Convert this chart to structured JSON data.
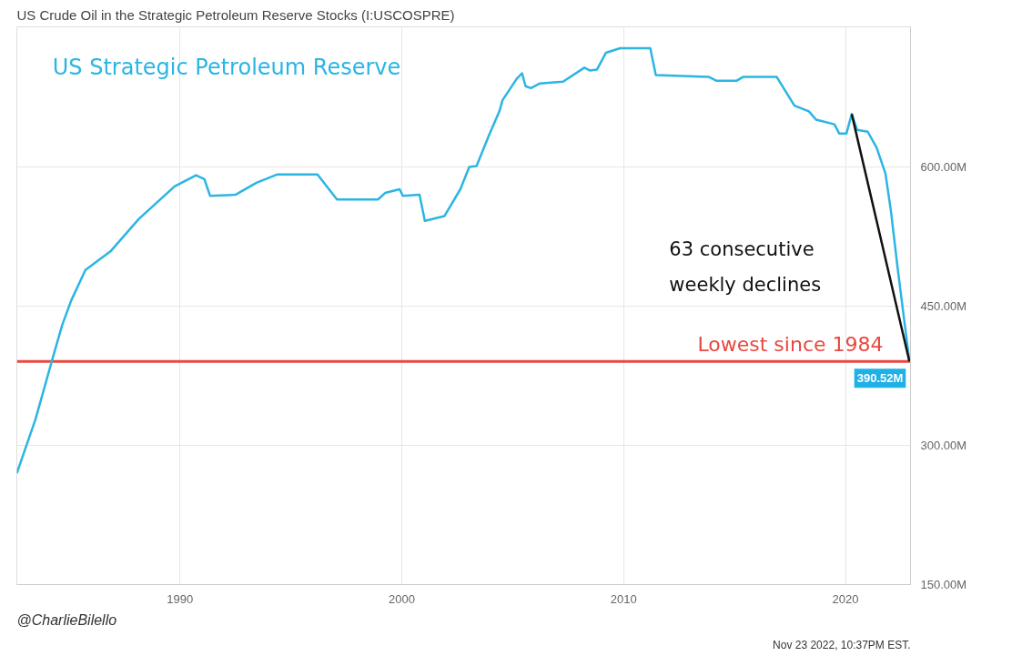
{
  "chart_data": {
    "type": "line",
    "title": "US Crude Oil in the Strategic Petroleum Reserve Stocks (I:USCOSPRE)",
    "x": [
      1982.65,
      1983.49,
      1984.3,
      1984.7,
      1985.1,
      1985.74,
      1986.87,
      1988.15,
      1989.76,
      1990.73,
      1991.1,
      1991.36,
      1992.5,
      1993.45,
      1994.4,
      1996.2,
      1997.08,
      1998.93,
      1999.25,
      1999.9,
      2000.05,
      2000.8,
      2001.04,
      2001.92,
      2002.64,
      2003.04,
      2003.37,
      2003.93,
      2004.4,
      2004.54,
      2005.18,
      2005.42,
      2005.58,
      2005.82,
      2006.23,
      2007.27,
      2008.23,
      2008.47,
      2008.8,
      2009.2,
      2009.84,
      2011.2,
      2011.45,
      2013.85,
      2014.17,
      2015.1,
      2015.38,
      2016.9,
      2017.7,
      2018.35,
      2018.67,
      2019.5,
      2019.72,
      2020.04,
      2020.28,
      2020.52,
      2021.0,
      2021.4,
      2021.8,
      2022.05,
      2022.35,
      2022.88
    ],
    "series": [
      {
        "color": "#2bb5e3",
        "values": [
          270,
          328,
          397,
          430,
          456,
          489,
          509,
          544,
          579,
          591,
          587,
          569,
          570,
          583,
          592,
          592,
          565,
          565,
          572,
          576,
          569,
          570,
          542,
          547,
          576,
          600,
          601,
          634,
          660,
          672,
          695,
          701,
          687,
          685,
          690,
          692,
          707,
          704,
          705,
          723,
          728,
          728,
          699,
          697,
          693,
          693,
          697,
          697,
          666,
          660,
          651,
          646,
          636,
          636,
          657,
          640,
          638,
          621,
          593,
          552,
          491,
          390.52
        ]
      },
      {
        "type": "line",
        "color": "#111111",
        "x": [
          2020.28,
          2022.88
        ],
        "values": [
          657,
          390.52
        ]
      }
    ],
    "xlim": [
      1982.65,
      2022.93
    ],
    "xticks": [
      1990,
      2000,
      2010,
      2020
    ],
    "ylim": [
      150,
      751
    ],
    "yticks": [
      {
        "value": 150,
        "label": "150.00M"
      },
      {
        "value": 300,
        "label": "300.00M"
      },
      {
        "value": 450,
        "label": "450.00M"
      },
      {
        "value": 600,
        "label": "600.00M"
      }
    ],
    "grid": true,
    "ref_lines": [
      {
        "axis": "y",
        "value": 390.52,
        "label": "Lowest since 1984",
        "color": "#e8483f"
      }
    ],
    "annotations": [
      "US Strategic Petroleum Reserve",
      "63 consecutive\nweekly declines",
      {
        "text": "390.52M",
        "x": 2022.88,
        "y": 390.52
      },
      "@CharlieBilello",
      "Nov 23 2022, 10:37PM EST."
    ]
  }
}
